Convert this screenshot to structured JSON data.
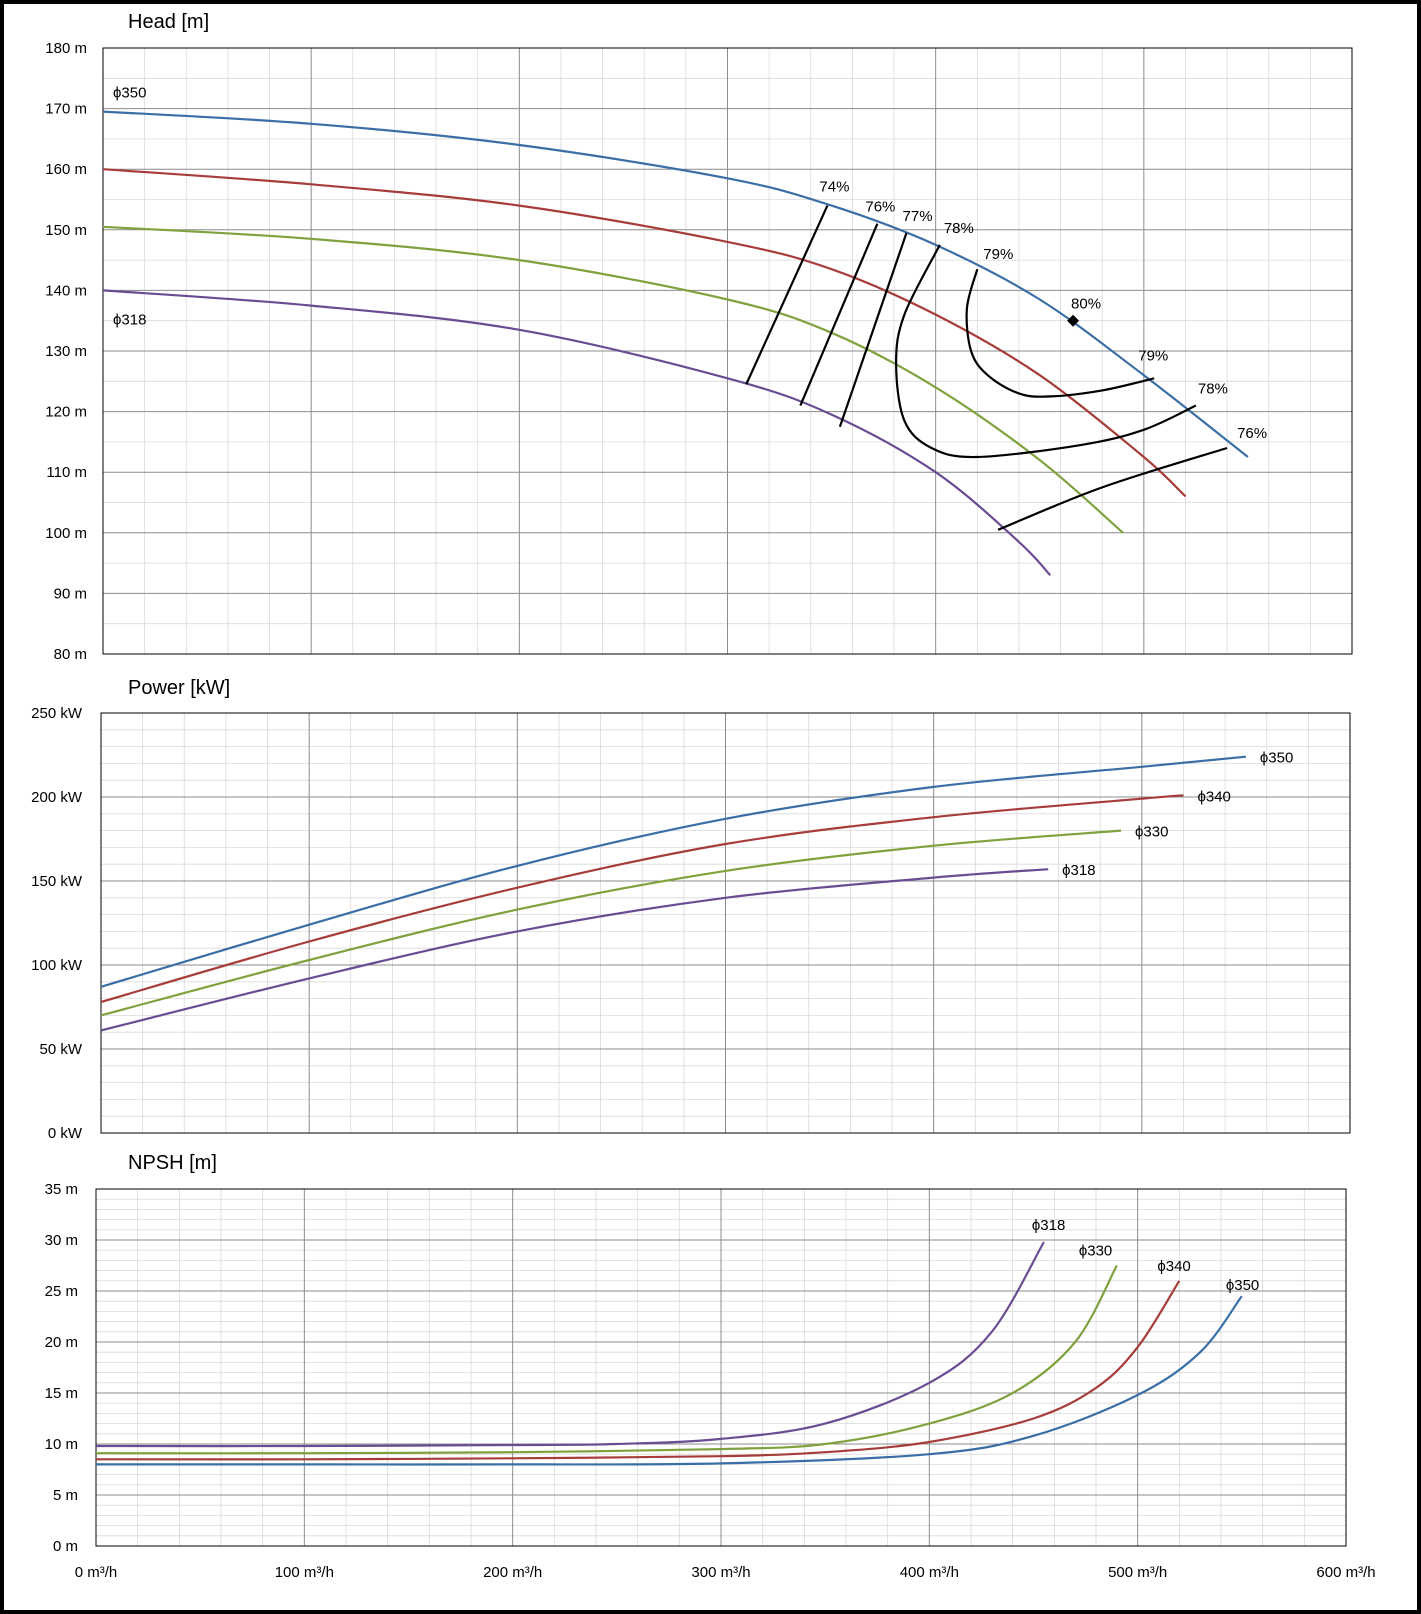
{
  "colors": {
    "d350": "#3a6ea5",
    "d340": "#a63d3a",
    "d330": "#7fa23e",
    "d318": "#6a4c93",
    "efficiency": "#000000"
  },
  "x_tick_labels": [
    "0 m³/h",
    "100 m³/h",
    "200 m³/h",
    "300 m³/h",
    "400 m³/h",
    "500 m³/h",
    "600 m³/h"
  ],
  "chart_data": [
    {
      "type": "line",
      "title": "Head [m]",
      "xlim": [
        0,
        600
      ],
      "ylim": [
        80,
        180
      ],
      "y_tick_labels": [
        "80 m",
        "90 m",
        "100 m",
        "110 m",
        "120 m",
        "130 m",
        "140 m",
        "150 m",
        "160 m",
        "170 m",
        "180 m"
      ],
      "y_ticks": [
        80,
        90,
        100,
        110,
        120,
        130,
        140,
        150,
        160,
        170,
        180
      ],
      "grid": true,
      "series": [
        {
          "name": "ϕ350",
          "color_key": "d350",
          "x": [
            0,
            100,
            200,
            300,
            350,
            400,
            450,
            500,
            550
          ],
          "y": [
            169.5,
            167.5,
            164.0,
            158.5,
            154.0,
            147.5,
            138.5,
            126.0,
            112.5
          ]
        },
        {
          "name": "",
          "color_key": "d340",
          "x": [
            0,
            100,
            200,
            300,
            350,
            400,
            450,
            500,
            520
          ],
          "y": [
            160.0,
            157.5,
            154.0,
            148.0,
            143.5,
            136.0,
            126.0,
            112.5,
            106.0
          ]
        },
        {
          "name": "",
          "color_key": "d330",
          "x": [
            0,
            100,
            200,
            300,
            350,
            400,
            450,
            490
          ],
          "y": [
            150.5,
            148.5,
            145.0,
            138.5,
            133.0,
            124.0,
            112.0,
            100.0
          ]
        },
        {
          "name": "ϕ318",
          "color_key": "d318",
          "x": [
            0,
            100,
            200,
            300,
            350,
            400,
            440,
            455
          ],
          "y": [
            140.0,
            137.5,
            133.5,
            125.5,
            119.5,
            110.0,
            98.5,
            93.0
          ]
        }
      ],
      "efficiency_lines": [
        {
          "label": "74%",
          "x": [
            309,
            348
          ],
          "y": [
            124.5,
            154.0
          ]
        },
        {
          "label": "76%",
          "x": [
            335,
            372
          ],
          "y": [
            121.0,
            151.0
          ]
        },
        {
          "label": "77%",
          "x": [
            354,
            386
          ],
          "y": [
            117.5,
            149.5
          ]
        },
        {
          "label": "78%",
          "x": [
            402,
            385,
            381,
            385,
            398,
            420,
            470,
            500,
            525
          ],
          "y": [
            147.5,
            136.0,
            128.0,
            118.5,
            114.0,
            112.5,
            114.5,
            117.0,
            121.0
          ]
        },
        {
          "label": "79%",
          "x": [
            420,
            415,
            417,
            425,
            440,
            455,
            480,
            505
          ],
          "y": [
            143.5,
            137.0,
            130.0,
            126.0,
            123.0,
            122.5,
            123.5,
            125.5
          ]
        },
        {
          "label": "76%",
          "x": [
            430,
            480,
            540
          ],
          "y": [
            100.5,
            107.5,
            114.0
          ]
        }
      ],
      "annotations": [
        {
          "text": "ϕ350"
        },
        {
          "text": "ϕ318"
        },
        {
          "text": "80%",
          "x": 466,
          "y": 135.0,
          "marker": "diamond"
        },
        {
          "text": "74%"
        },
        {
          "text": "76%"
        },
        {
          "text": "77%"
        },
        {
          "text": "78%"
        },
        {
          "text": "79%"
        },
        {
          "text": "79%"
        },
        {
          "text": "78%"
        },
        {
          "text": "76%"
        }
      ]
    },
    {
      "type": "line",
      "title": "Power [kW]",
      "xlim": [
        0,
        600
      ],
      "ylim": [
        0,
        250
      ],
      "y_tick_labels": [
        "0 kW",
        "50 kW",
        "100 kW",
        "150 kW",
        "200 kW",
        "250 kW"
      ],
      "y_ticks": [
        0,
        50,
        100,
        150,
        200,
        250
      ],
      "grid": true,
      "series": [
        {
          "name": "ϕ350",
          "color_key": "d350",
          "x": [
            0,
            100,
            200,
            300,
            400,
            500,
            550
          ],
          "y": [
            87,
            124,
            159,
            187,
            206,
            218,
            224
          ]
        },
        {
          "name": "ϕ340",
          "color_key": "d340",
          "x": [
            0,
            100,
            200,
            300,
            400,
            500,
            520
          ],
          "y": [
            78,
            114,
            146,
            172,
            188,
            199,
            201
          ]
        },
        {
          "name": "ϕ330",
          "color_key": "d330",
          "x": [
            0,
            100,
            200,
            300,
            400,
            490
          ],
          "y": [
            70,
            103,
            133,
            156,
            171,
            180
          ]
        },
        {
          "name": "ϕ318",
          "color_key": "d318",
          "x": [
            0,
            100,
            200,
            300,
            400,
            455
          ],
          "y": [
            61,
            92,
            120,
            140,
            152,
            157
          ]
        }
      ]
    },
    {
      "type": "line",
      "title": "NPSH [m]",
      "xlim": [
        0,
        600
      ],
      "ylim": [
        0,
        35
      ],
      "y_tick_labels": [
        "0 m",
        "5 m",
        "10 m",
        "15 m",
        "20 m",
        "25 m",
        "30 m",
        "35 m"
      ],
      "y_ticks": [
        0,
        5,
        10,
        15,
        20,
        25,
        30,
        35
      ],
      "grid": true,
      "series": [
        {
          "name": "ϕ350",
          "color_key": "d350",
          "x": [
            0,
            100,
            200,
            300,
            400,
            450,
            500,
            530,
            550
          ],
          "y": [
            8.0,
            8.0,
            8.0,
            8.1,
            9.0,
            10.8,
            14.8,
            19.0,
            24.5
          ]
        },
        {
          "name": "ϕ340",
          "color_key": "d340",
          "x": [
            0,
            100,
            200,
            300,
            350,
            400,
            450,
            480,
            500,
            520
          ],
          "y": [
            8.5,
            8.5,
            8.6,
            8.8,
            9.2,
            10.2,
            12.5,
            15.5,
            19.5,
            26.0
          ]
        },
        {
          "name": "ϕ330",
          "color_key": "d330",
          "x": [
            0,
            100,
            200,
            300,
            350,
            400,
            440,
            470,
            490
          ],
          "y": [
            9.1,
            9.1,
            9.2,
            9.5,
            10.0,
            12.0,
            15.0,
            20.0,
            27.5
          ]
        },
        {
          "name": "ϕ318",
          "color_key": "d318",
          "x": [
            0,
            100,
            200,
            250,
            300,
            350,
            400,
            430,
            455
          ],
          "y": [
            9.8,
            9.8,
            9.9,
            10.0,
            10.5,
            12.0,
            16.0,
            21.0,
            29.8
          ]
        }
      ]
    }
  ]
}
